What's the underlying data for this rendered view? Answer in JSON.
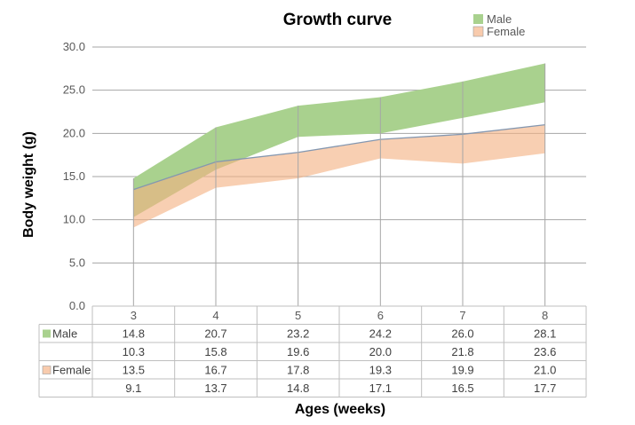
{
  "chart_data": {
    "type": "area",
    "title": "Growth curve",
    "xlabel": "Ages (weeks)",
    "ylabel": "Body weight (g)",
    "ylim": [
      0,
      30
    ],
    "yticks": [
      "0.0",
      "5.0",
      "10.0",
      "15.0",
      "20.0",
      "25.0",
      "30.0"
    ],
    "grid": true,
    "legend_position": "top-right",
    "categories": [
      "3",
      "4",
      "5",
      "6",
      "7",
      "8"
    ],
    "series": [
      {
        "name": "Male",
        "color": "#a9d18e",
        "upper": [
          14.8,
          20.7,
          23.2,
          24.2,
          26.0,
          28.1
        ],
        "lower": [
          10.3,
          15.8,
          19.6,
          20.0,
          21.8,
          23.6
        ],
        "upper_labels": [
          "14.8",
          "20.7",
          "23.2",
          "24.2",
          "26.0",
          "28.1"
        ],
        "lower_labels": [
          "10.3",
          "15.8",
          "19.6",
          "20.0",
          "21.8",
          "23.6"
        ]
      },
      {
        "name": "Female",
        "color": "#f4b183",
        "upper": [
          13.5,
          16.7,
          17.8,
          19.3,
          19.9,
          21.0
        ],
        "lower": [
          9.1,
          13.7,
          14.8,
          17.1,
          16.5,
          17.7
        ],
        "upper_labels": [
          "13.5",
          "16.7",
          "17.8",
          "19.3",
          "19.9",
          "21.0"
        ],
        "lower_labels": [
          "9.1",
          "13.7",
          "14.8",
          "17.1",
          "16.5",
          "17.7"
        ]
      }
    ]
  }
}
